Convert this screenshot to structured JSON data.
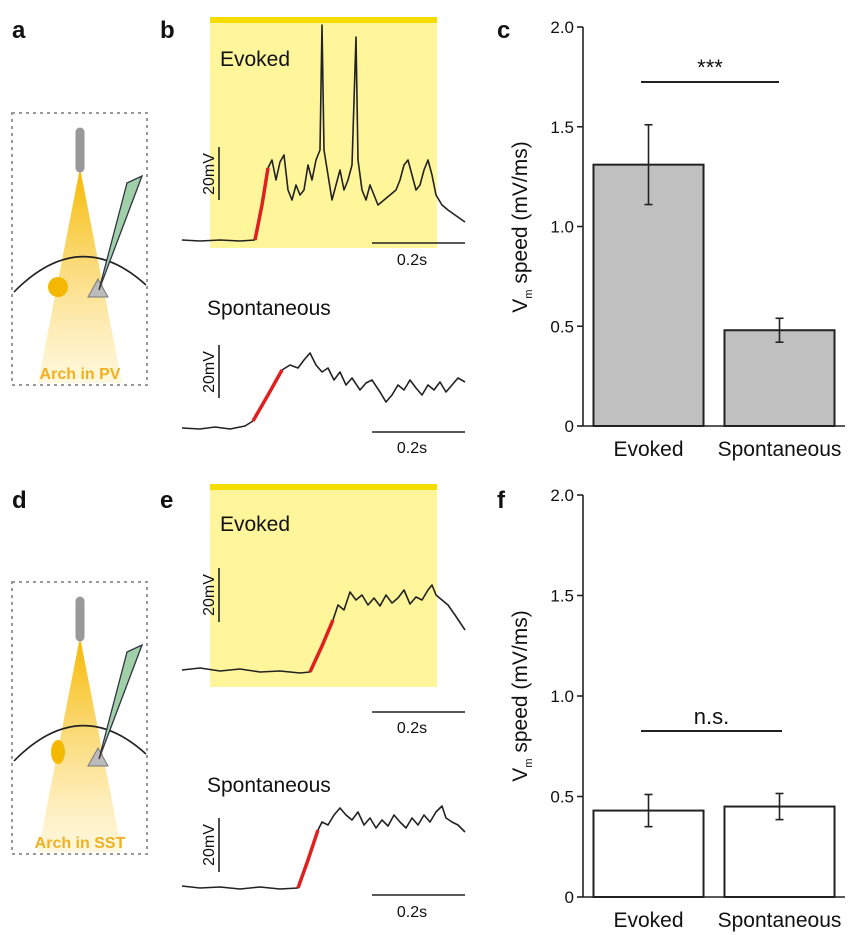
{
  "figure": {
    "panel_a": {
      "letter": "a",
      "caption": "Arch in PV"
    },
    "panel_b": {
      "letter": "b",
      "evoked_label": "Evoked",
      "evoked_scale_v": "20mV",
      "evoked_scale_t": "0.2s",
      "spont_label": "Spontaneous",
      "spont_scale_v": "20mV",
      "spont_scale_t": "0.2s"
    },
    "panel_c": {
      "letter": "c"
    },
    "panel_d": {
      "letter": "d",
      "caption": "Arch in SST"
    },
    "panel_e": {
      "letter": "e",
      "evoked_label": "Evoked",
      "evoked_scale_v": "20mV",
      "evoked_scale_t": "0.2s",
      "spont_label": "Spontaneous",
      "spont_scale_v": "20mV",
      "spont_scale_t": "0.2s"
    },
    "panel_f": {
      "letter": "f"
    }
  },
  "chart_data": [
    {
      "type": "bar",
      "ylabel_main": "V",
      "ylabel_sub": "m",
      "ylabel_rest": " speed (mV/ms)",
      "categories": [
        "Evoked",
        "Spontaneous"
      ],
      "values": [
        1.31,
        0.48
      ],
      "errors": [
        0.2,
        0.06
      ],
      "color": "#c0c0c0",
      "annotation": "***",
      "ylim": [
        0,
        2
      ],
      "yticks": [
        0,
        0.5,
        {
          "value": 1,
          "label": "1.0"
        },
        1.5,
        {
          "value": 2,
          "label": "2.0"
        }
      ]
    },
    {
      "type": "bar",
      "ylabel_main": "V",
      "ylabel_sub": "m",
      "ylabel_rest": " speed (mV/ms)",
      "categories": [
        "Evoked",
        "Spontaneous"
      ],
      "values": [
        0.43,
        0.45
      ],
      "errors": [
        0.08,
        0.065
      ],
      "color": "#ffffff",
      "annotation": "n.s.",
      "ylim": [
        0,
        2
      ],
      "yticks": [
        0,
        0.5,
        {
          "value": 1,
          "label": "1.0"
        },
        1.5,
        {
          "value": 2,
          "label": "2.0"
        }
      ]
    }
  ]
}
